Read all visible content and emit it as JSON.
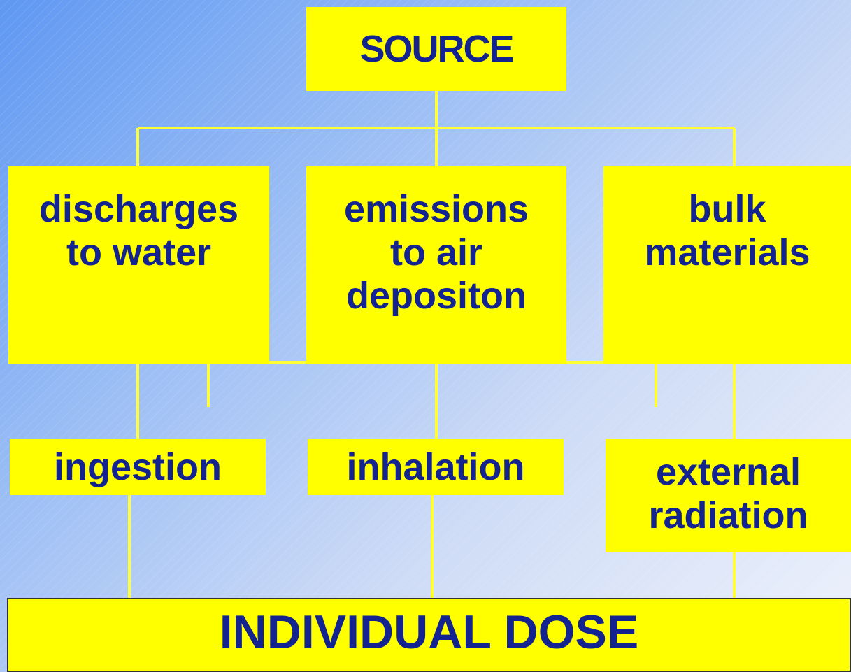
{
  "nodes": [
    {
      "lines": [
        "SOURCE"
      ]
    },
    {
      "lines": [
        "discharges",
        "to water"
      ]
    },
    {
      "lines": [
        "emissions",
        "to air",
        "depositon"
      ]
    },
    {
      "lines": [
        "bulk",
        "materials"
      ]
    },
    {
      "lines": [
        "ingestion"
      ]
    },
    {
      "lines": [
        "inhalation"
      ]
    },
    {
      "lines": [
        "external",
        "radiation"
      ]
    },
    {
      "lines": [
        "INDIVIDUAL DOSE"
      ]
    }
  ]
}
